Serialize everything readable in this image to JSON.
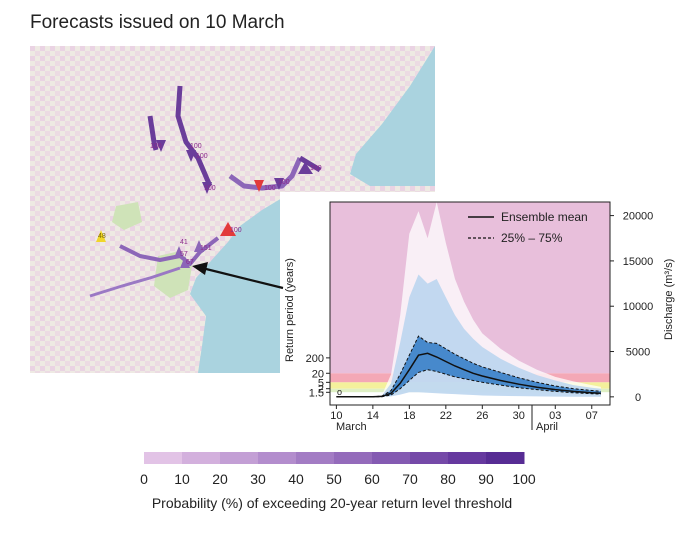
{
  "title": "Forecasts issued on 10 March",
  "map": {
    "colors": {
      "land": "#eeeae3",
      "sea": "#aad3df",
      "park": "#cfe3b8",
      "hatch": "#e7bfe3",
      "river": "#8c66b8",
      "river_dark": "#6a3d9a"
    },
    "labels": [
      {
        "text": "100"
      },
      {
        "text": "100"
      },
      {
        "text": "100"
      },
      {
        "text": "100"
      },
      {
        "text": "100"
      },
      {
        "text": "100"
      },
      {
        "text": "100"
      },
      {
        "text": "100"
      },
      {
        "text": "41"
      },
      {
        "text": "151"
      },
      {
        "text": "57"
      },
      {
        "text": "67"
      },
      {
        "text": "48"
      }
    ]
  },
  "chart_data": {
    "type": "area",
    "x_tick_labels": [
      "10",
      "14",
      "18",
      "22",
      "26",
      "30",
      "03",
      "07"
    ],
    "x_month_labels": [
      "March",
      "April"
    ],
    "ylabel_left": "Return period (years)",
    "ylabel_right": "Discharge (m³/s)",
    "left_ticks": [
      "1.5",
      "2",
      "5",
      "20",
      "200"
    ],
    "right_ticks": [
      "0",
      "5000",
      "10000",
      "15000",
      "20000"
    ],
    "ylim_right": [
      -900,
      21500
    ],
    "legend": {
      "mean_label": "Ensemble mean",
      "iqr_label": "25% – 75%",
      "position": "top-right"
    },
    "colors": {
      "band_pink": "#e8bfdb",
      "band_red": "#f4a8b6",
      "band_yellow": "#f4f19c",
      "band_lightgreen": "#dff0c4",
      "ensemble": "#1e6fc0"
    },
    "x_days": [
      10,
      12,
      14,
      15,
      16,
      17,
      18,
      19,
      20,
      21,
      22,
      23,
      24,
      25,
      26,
      28,
      30,
      32,
      34,
      36,
      38,
      39
    ],
    "mean": [
      0,
      0,
      0,
      50,
      400,
      1500,
      3000,
      4600,
      4800,
      4400,
      3900,
      3400,
      3000,
      2600,
      2300,
      1800,
      1400,
      1050,
      800,
      600,
      450,
      400
    ],
    "p25": [
      0,
      0,
      0,
      20,
      200,
      900,
      1800,
      2700,
      3000,
      2800,
      2500,
      2200,
      2000,
      1800,
      1600,
      1300,
      1000,
      800,
      600,
      450,
      350,
      300
    ],
    "p75": [
      0,
      0,
      0,
      80,
      700,
      2500,
      4600,
      6700,
      6000,
      5900,
      5300,
      4700,
      4200,
      3700,
      3300,
      2700,
      2100,
      1600,
      1200,
      900,
      700,
      600
    ],
    "p5": [
      0,
      0,
      0,
      0,
      50,
      250,
      500,
      500,
      450,
      400,
      350,
      300,
      250,
      200,
      150,
      100,
      80,
      50,
      30,
      20,
      10,
      0
    ],
    "p95": [
      0,
      0,
      0,
      150,
      1500,
      6000,
      11000,
      13500,
      12500,
      13000,
      11000,
      9000,
      7500,
      6400,
      5500,
      4200,
      3200,
      2400,
      1800,
      1300,
      1000,
      900
    ],
    "max": [
      0,
      0,
      0,
      200,
      2500,
      9000,
      18000,
      20500,
      17500,
      21500,
      17000,
      13000,
      10500,
      8500,
      7000,
      5300,
      4000,
      3000,
      2200,
      1700,
      1300,
      1100
    ],
    "annotation": "o"
  },
  "colorbar": {
    "title": "Probability (%) of exceeding 20-year return level threshold",
    "tick_labels": [
      "0",
      "10",
      "20",
      "30",
      "40",
      "50",
      "60",
      "70",
      "80",
      "90",
      "100"
    ],
    "colors": [
      "#e2c3e6",
      "#d3b0dd",
      "#c39fd5",
      "#b38dcd",
      "#a37cc4",
      "#946bbb",
      "#845ab2",
      "#7549a8",
      "#66399f",
      "#572c94"
    ]
  }
}
